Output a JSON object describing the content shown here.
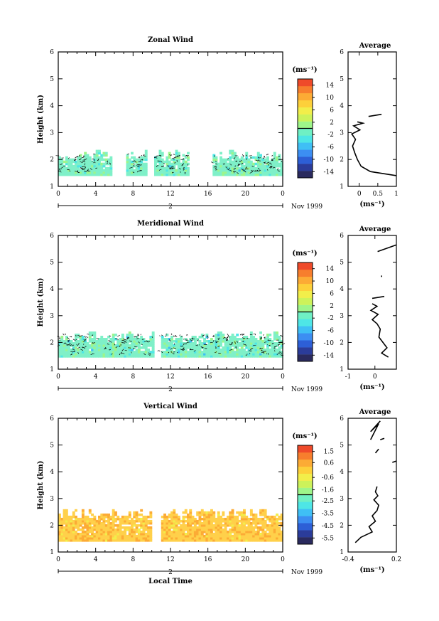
{
  "chart_data": [
    {
      "type": "heatmap",
      "title": "Zonal Wind",
      "ylabel": "Height (km)",
      "xticks": [
        "0",
        "4",
        "8",
        "12",
        "16",
        "20",
        "0"
      ],
      "yticks": [
        "1",
        "2",
        "3",
        "4",
        "5",
        "6"
      ],
      "ylim": [
        1,
        6
      ],
      "xlim": [
        0,
        24
      ],
      "day_label": "2",
      "date_label": "Nov 1999",
      "colorbar_unit": "(ms⁻¹)",
      "colorbar_ticks": [
        "14",
        "10",
        "6",
        "2",
        "-2",
        "-6",
        "-10",
        "-14"
      ],
      "colorbar_range": [
        -16,
        16
      ],
      "data_base_km": 1.4,
      "data_top_km": 2.3,
      "dominant_color": "#7ff0c8",
      "gaps_hours": [
        [
          5.7,
          7.1
        ],
        [
          9.3,
          10.2
        ],
        [
          14.0,
          16.5
        ]
      ],
      "avg_title": "Average",
      "avg_xlabel": "(ms⁻¹)",
      "avg_xticks": [
        "0",
        "0.5",
        "1"
      ],
      "avg_xlim": [
        -0.3,
        1.0
      ],
      "avg_profile": [
        [
          1.0,
          1.4
        ],
        [
          0.3,
          1.55
        ],
        [
          0.05,
          1.75
        ],
        [
          -0.05,
          2.0
        ],
        [
          -0.12,
          2.25
        ],
        [
          -0.18,
          2.5
        ],
        [
          -0.1,
          2.75
        ],
        [
          -0.2,
          2.95
        ],
        [
          0.02,
          3.1
        ],
        [
          -0.15,
          3.25
        ],
        [
          0.1,
          3.35
        ],
        [
          -0.05,
          3.4
        ]
      ],
      "avg_segments": [
        [
          [
            0.25,
            3.6
          ],
          [
            0.6,
            3.68
          ]
        ]
      ]
    },
    {
      "type": "heatmap",
      "title": "Meridional Wind",
      "ylabel": "Height (km)",
      "xticks": [
        "0",
        "4",
        "8",
        "12",
        "16",
        "20",
        "0"
      ],
      "yticks": [
        "1",
        "2",
        "3",
        "4",
        "5",
        "6"
      ],
      "ylim": [
        1,
        6
      ],
      "xlim": [
        0,
        24
      ],
      "day_label": "2",
      "date_label": "Nov 1999",
      "colorbar_unit": "(ms⁻¹)",
      "colorbar_ticks": [
        "14",
        "10",
        "6",
        "2",
        "-2",
        "-6",
        "-10",
        "-14"
      ],
      "colorbar_range": [
        -16,
        16
      ],
      "data_base_km": 1.45,
      "data_top_km": 2.4,
      "dominant_color": "#7ff0c8",
      "gaps_hours": [
        [
          10.2,
          10.9
        ]
      ],
      "avg_title": "Average",
      "avg_xlabel": "(ms⁻¹)",
      "avg_xticks": [
        "-1",
        "0"
      ],
      "avg_xlim": [
        -1.0,
        0.8
      ],
      "avg_profile": [
        [
          0.5,
          1.45
        ],
        [
          0.25,
          1.6
        ],
        [
          0.45,
          1.8
        ],
        [
          0.3,
          2.0
        ],
        [
          0.15,
          2.2
        ],
        [
          0.2,
          2.5
        ],
        [
          0.08,
          2.7
        ],
        [
          -0.1,
          2.85
        ],
        [
          0.12,
          3.05
        ],
        [
          -0.15,
          3.2
        ],
        [
          0.08,
          3.35
        ],
        [
          -0.1,
          3.45
        ]
      ],
      "avg_segments": [
        [
          [
            -0.1,
            3.65
          ],
          [
            0.35,
            3.72
          ]
        ],
        [
          [
            0.25,
            4.45
          ],
          [
            0.25,
            4.5
          ]
        ],
        [
          [
            0.1,
            5.4
          ],
          [
            0.8,
            5.65
          ]
        ]
      ]
    },
    {
      "type": "heatmap",
      "title": "Vertical Wind",
      "ylabel": "Height (km)",
      "xlabel": "Local Time",
      "xticks": [
        "0",
        "4",
        "8",
        "12",
        "16",
        "20",
        "0"
      ],
      "yticks": [
        "1",
        "2",
        "3",
        "4",
        "5",
        "6"
      ],
      "ylim": [
        1,
        6
      ],
      "xlim": [
        0,
        24
      ],
      "day_label": "2",
      "date_label": "Nov 1999",
      "colorbar_unit": "(ms⁻¹)",
      "colorbar_ticks": [
        "1.5",
        "0.6",
        "-0.6",
        "-1.6",
        "-2.5",
        "-3.5",
        "-4.5",
        "-5.5"
      ],
      "colorbar_range": [
        -6,
        2
      ],
      "data_base_km": 1.4,
      "data_top_km": 2.6,
      "dominant_color": "#ffd04a",
      "gaps_hours": [
        [
          10.0,
          10.8
        ]
      ],
      "avg_title": "Average",
      "avg_xlabel": "(ms⁻¹)",
      "avg_xticks": [
        "-0.4",
        "0.2"
      ],
      "avg_xlim": [
        -0.4,
        0.2
      ],
      "avg_profile": [
        [
          -0.31,
          1.35
        ],
        [
          -0.24,
          1.55
        ],
        [
          -0.1,
          1.75
        ],
        [
          -0.14,
          1.95
        ],
        [
          -0.06,
          2.15
        ],
        [
          -0.1,
          2.35
        ],
        [
          -0.04,
          2.55
        ],
        [
          -0.02,
          2.75
        ],
        [
          -0.08,
          2.95
        ],
        [
          -0.03,
          3.1
        ],
        [
          -0.06,
          3.25
        ],
        [
          -0.04,
          3.45
        ]
      ],
      "avg_segments": [
        [
          [
            -0.06,
            4.7
          ],
          [
            -0.02,
            4.85
          ]
        ],
        [
          [
            0.0,
            5.2
          ],
          [
            0.05,
            5.25
          ]
        ],
        [
          [
            -0.12,
            5.2
          ],
          [
            -0.02,
            5.8
          ],
          [
            -0.12,
            5.5
          ],
          [
            0.0,
            5.9
          ]
        ],
        [
          [
            0.15,
            4.35
          ],
          [
            0.2,
            4.4
          ]
        ]
      ]
    }
  ]
}
